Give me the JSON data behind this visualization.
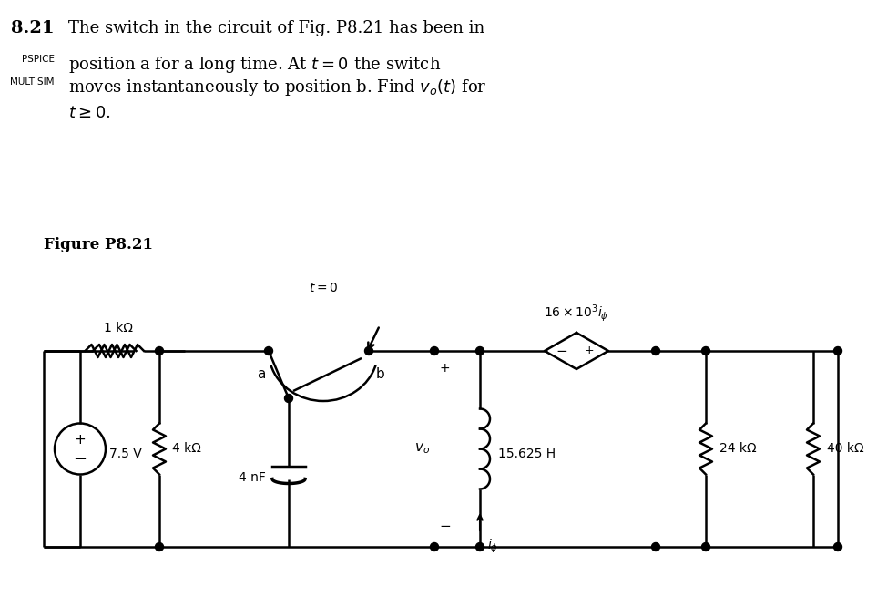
{
  "bg_color": "#ffffff",
  "text_color": "#000000",
  "line_color": "#000000",
  "title_num": "8.21",
  "label_pspice": "PSPICE",
  "label_multisim": "MULTISIM",
  "main_text_line1": "The switch in the circuit of Fig. P8.21 has been in",
  "main_text_line2": "position a for a long time. At $t = 0$ the switch",
  "main_text_line3": "moves instantaneously to position b. Find $v_o(t)$ for",
  "main_text_line4": "$t \\geq 0$.",
  "figure_label": "Figure P8.21",
  "resistor1": "1 kΩ",
  "voltage_src": "7.5 V",
  "resistor2": "4 kΩ",
  "capacitor": "4 nF",
  "inductor": "15.625 H",
  "resistor3": "24 kΩ",
  "resistor4": "40 kΩ",
  "dep_src_label": "16 × 10",
  "switch_label": "$t = 0$",
  "switch_a": "a",
  "switch_b": "b",
  "vo_label": "$v_o$",
  "i_phi_label": "$i_\\phi$",
  "plus": "+",
  "minus": "−"
}
